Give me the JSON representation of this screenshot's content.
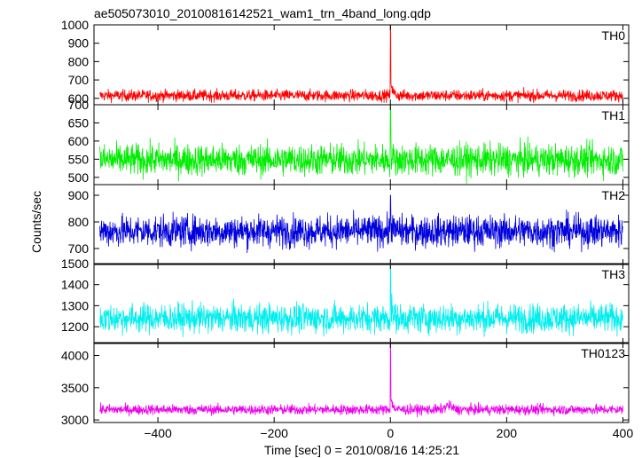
{
  "chart_data": {
    "type": "line",
    "title": "ae505073010_20100816142521_wam1_trn_4band_long.qdp",
    "xlabel": "Time [sec] 0 = 2010/08/16 14:25:21",
    "ylabel": "Counts/sec",
    "xlim": [
      -510,
      410
    ],
    "x_ticks": [
      -400,
      -200,
      0,
      200,
      400
    ],
    "x_tick_labels": [
      "−400",
      "−200",
      "0",
      "200",
      "400"
    ],
    "x_start": -500,
    "x_end": 400,
    "x_step": 0.5,
    "series": [
      {
        "name": "TH0",
        "color": "#ff0000",
        "ylim": [
          565,
          1000
        ],
        "yticks": [
          600,
          700,
          800,
          900,
          1000
        ],
        "ytick_labels": [
          "600",
          "700",
          "800",
          "900",
          "1000"
        ],
        "baseline": 615,
        "noise": 16,
        "spike_peak": 1000,
        "spike_tail": 110,
        "bump_amp": 0
      },
      {
        "name": "TH1",
        "color": "#00ee00",
        "ylim": [
          480,
          700
        ],
        "yticks": [
          500,
          550,
          600,
          650,
          700
        ],
        "ytick_labels": [
          "500",
          "550",
          "600",
          "650",
          "700"
        ],
        "baseline": 548,
        "noise": 22,
        "spike_peak": 700,
        "spike_tail": 25,
        "bump_amp": 0
      },
      {
        "name": "TH2",
        "color": "#0000dd",
        "ylim": [
          640,
          940
        ],
        "yticks": [
          700,
          800,
          900
        ],
        "ytick_labels": [
          "700",
          "800",
          "900"
        ],
        "baseline": 765,
        "noise": 30,
        "spike_peak": 900,
        "spike_tail": 40,
        "bump_amp": 0
      },
      {
        "name": "TH3",
        "color": "#00eeee",
        "ylim": [
          1120,
          1500
        ],
        "yticks": [
          1200,
          1300,
          1400,
          1500
        ],
        "ytick_labels": [
          "1200",
          "1300",
          "1400",
          "1500"
        ],
        "baseline": 1240,
        "noise": 35,
        "spike_peak": 1500,
        "spike_tail": 80,
        "bump_amp": 0
      },
      {
        "name": "TH0123",
        "color": "#ee00ee",
        "ylim": [
          2960,
          4200
        ],
        "yticks": [
          3000,
          3500,
          4000
        ],
        "ytick_labels": [
          "3000",
          "3500",
          "4000"
        ],
        "baseline": 3160,
        "noise": 40,
        "spike_peak": 4200,
        "spike_tail": 250,
        "bump_amp": 60
      }
    ]
  }
}
